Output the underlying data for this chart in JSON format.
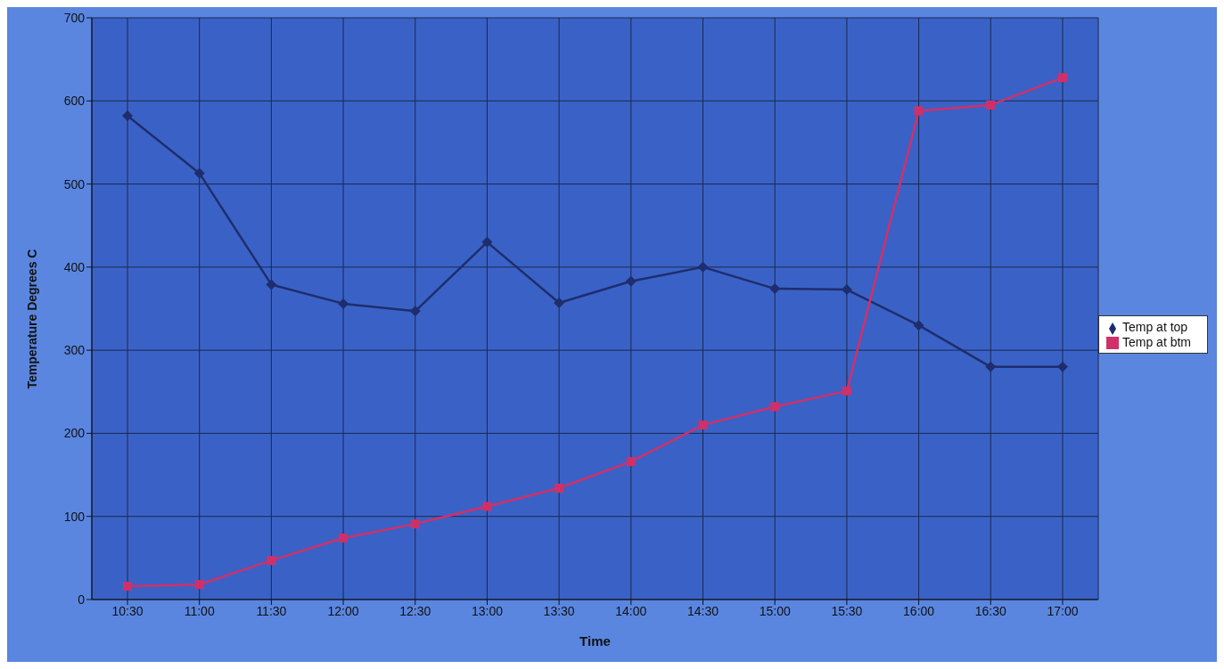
{
  "chart_data": {
    "type": "line",
    "xlabel": "Time",
    "ylabel": "Temperature Degrees C",
    "categories": [
      "10:30",
      "11:00",
      "11:30",
      "12:00",
      "12:30",
      "13:00",
      "13:30",
      "14:00",
      "14:30",
      "15:00",
      "15:30",
      "16:00",
      "16:30",
      "17:00"
    ],
    "series": [
      {
        "name": "Temp at top",
        "color": "#1f2d6e",
        "marker": "diamond",
        "values": [
          582,
          513,
          379,
          356,
          347,
          430,
          357,
          383,
          400,
          374,
          373,
          330,
          280,
          280
        ]
      },
      {
        "name": "Temp at btm",
        "color": "#d0306a",
        "marker": "square",
        "values": [
          16,
          18,
          47,
          74,
          91,
          112,
          134,
          166,
          210,
          232,
          251,
          588,
          595,
          628
        ]
      }
    ],
    "ylim": [
      0,
      700
    ],
    "yticks": [
      0,
      100,
      200,
      300,
      400,
      500,
      600,
      700
    ],
    "grid": true,
    "legend": "right",
    "line_style": "solid"
  }
}
